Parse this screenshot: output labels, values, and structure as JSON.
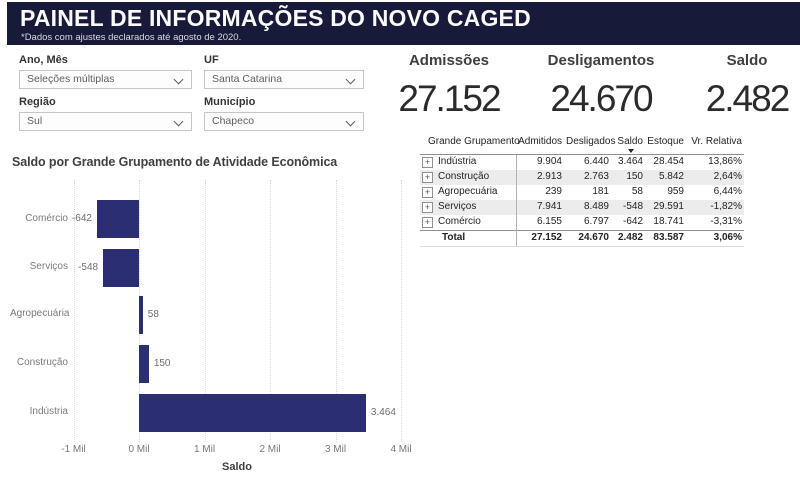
{
  "header": {
    "title": "PAINEL DE INFORMAÇÕES DO NOVO CAGED",
    "subtitle": "*Dados com ajustes declarados até agosto de 2020."
  },
  "filters": [
    {
      "label": "Ano, Mês",
      "value": "Seleções múltiplas"
    },
    {
      "label": "UF",
      "value": "Santa Catarina"
    },
    {
      "label": "Região",
      "value": "Sul"
    },
    {
      "label": "Município",
      "value": "Chapeco"
    }
  ],
  "kpis": [
    {
      "label": "Admissões",
      "value": "27.152"
    },
    {
      "label": "Desligamentos",
      "value": "24.670"
    },
    {
      "label": "Saldo",
      "value": "2.482"
    }
  ],
  "table": {
    "columns": [
      "Grande Grupamento",
      "Admitidos",
      "Desligados",
      "Saldo",
      "Estoque",
      "Vr. Relativa"
    ],
    "sorted_column": "Saldo",
    "sort_direction": "descending",
    "rows": [
      [
        "Indústria",
        "9.904",
        "6.440",
        "3.464",
        "28.454",
        "13,86%"
      ],
      [
        "Construção",
        "2.913",
        "2.763",
        "150",
        "5.842",
        "2,64%"
      ],
      [
        "Agropecuária",
        "239",
        "181",
        "58",
        "959",
        "6,44%"
      ],
      [
        "Serviços",
        "7.941",
        "8.489",
        "-548",
        "29.591",
        "-1,82%"
      ],
      [
        "Comércio",
        "6.155",
        "6.797",
        "-642",
        "18.741",
        "-3,31%"
      ]
    ],
    "total": [
      "Total",
      "27.152",
      "24.670",
      "2.482",
      "83.587",
      "3,06%"
    ],
    "expander_glyph": "+"
  },
  "chart_data": {
    "type": "bar",
    "orientation": "horizontal",
    "title": "Saldo por Grande Grupamento de Atividade Econômica",
    "categories": [
      "Comércio",
      "Serviços",
      "Agropecuária",
      "Construção",
      "Indústria"
    ],
    "values": [
      -642,
      -548,
      58,
      150,
      3464
    ],
    "value_labels": [
      "-642",
      "-548",
      "58",
      "150",
      "3.464"
    ],
    "xlabel": "Saldo",
    "xlim": [
      -1000,
      4000
    ],
    "x_ticks": [
      -1000,
      0,
      1000,
      2000,
      3000,
      4000
    ],
    "x_tick_labels": [
      "-1 Mil",
      "0 Mil",
      "1 Mil",
      "2 Mil",
      "3 Mil",
      "4 Mil"
    ],
    "grid": "vertical-dotted",
    "bar_color": "#2b2e72"
  },
  "colors": {
    "header_bg": "#171a38",
    "accent_navy": "#2b2e72",
    "stripe": "#ececec"
  }
}
